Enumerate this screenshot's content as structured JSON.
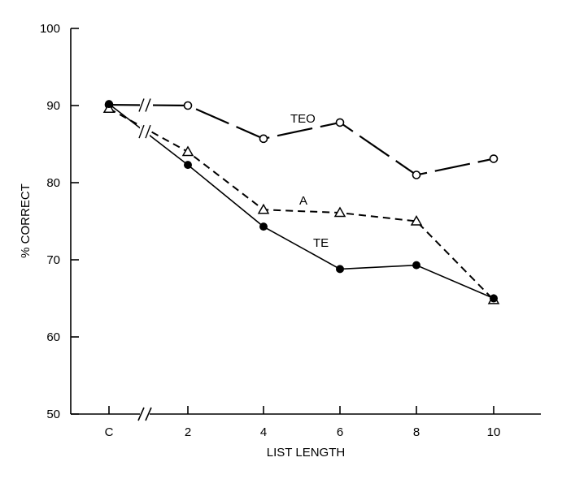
{
  "chart_data": {
    "type": "line",
    "title": "",
    "xlabel": "LIST LENGTH",
    "ylabel": "% CORRECT",
    "categories": [
      "C",
      "2",
      "4",
      "6",
      "8",
      "10"
    ],
    "ylim": [
      50,
      100
    ],
    "yticks": [
      "50",
      "60",
      "70",
      "80",
      "90",
      "100"
    ],
    "axis_break": "between C and 2",
    "grid": false,
    "legend": "inline labels",
    "series": [
      {
        "name": "TEO",
        "marker": "open-circle",
        "line": "long-dash",
        "values": [
          90.1,
          90.0,
          85.7,
          87.8,
          81.0,
          83.1
        ]
      },
      {
        "name": "A",
        "marker": "open-triangle",
        "line": "short-dash",
        "values": [
          89.6,
          84.0,
          76.5,
          76.1,
          75.0,
          64.8
        ]
      },
      {
        "name": "TE",
        "marker": "filled-circle",
        "line": "solid",
        "values": [
          90.2,
          82.3,
          74.3,
          68.8,
          69.3,
          65.0
        ]
      }
    ]
  }
}
